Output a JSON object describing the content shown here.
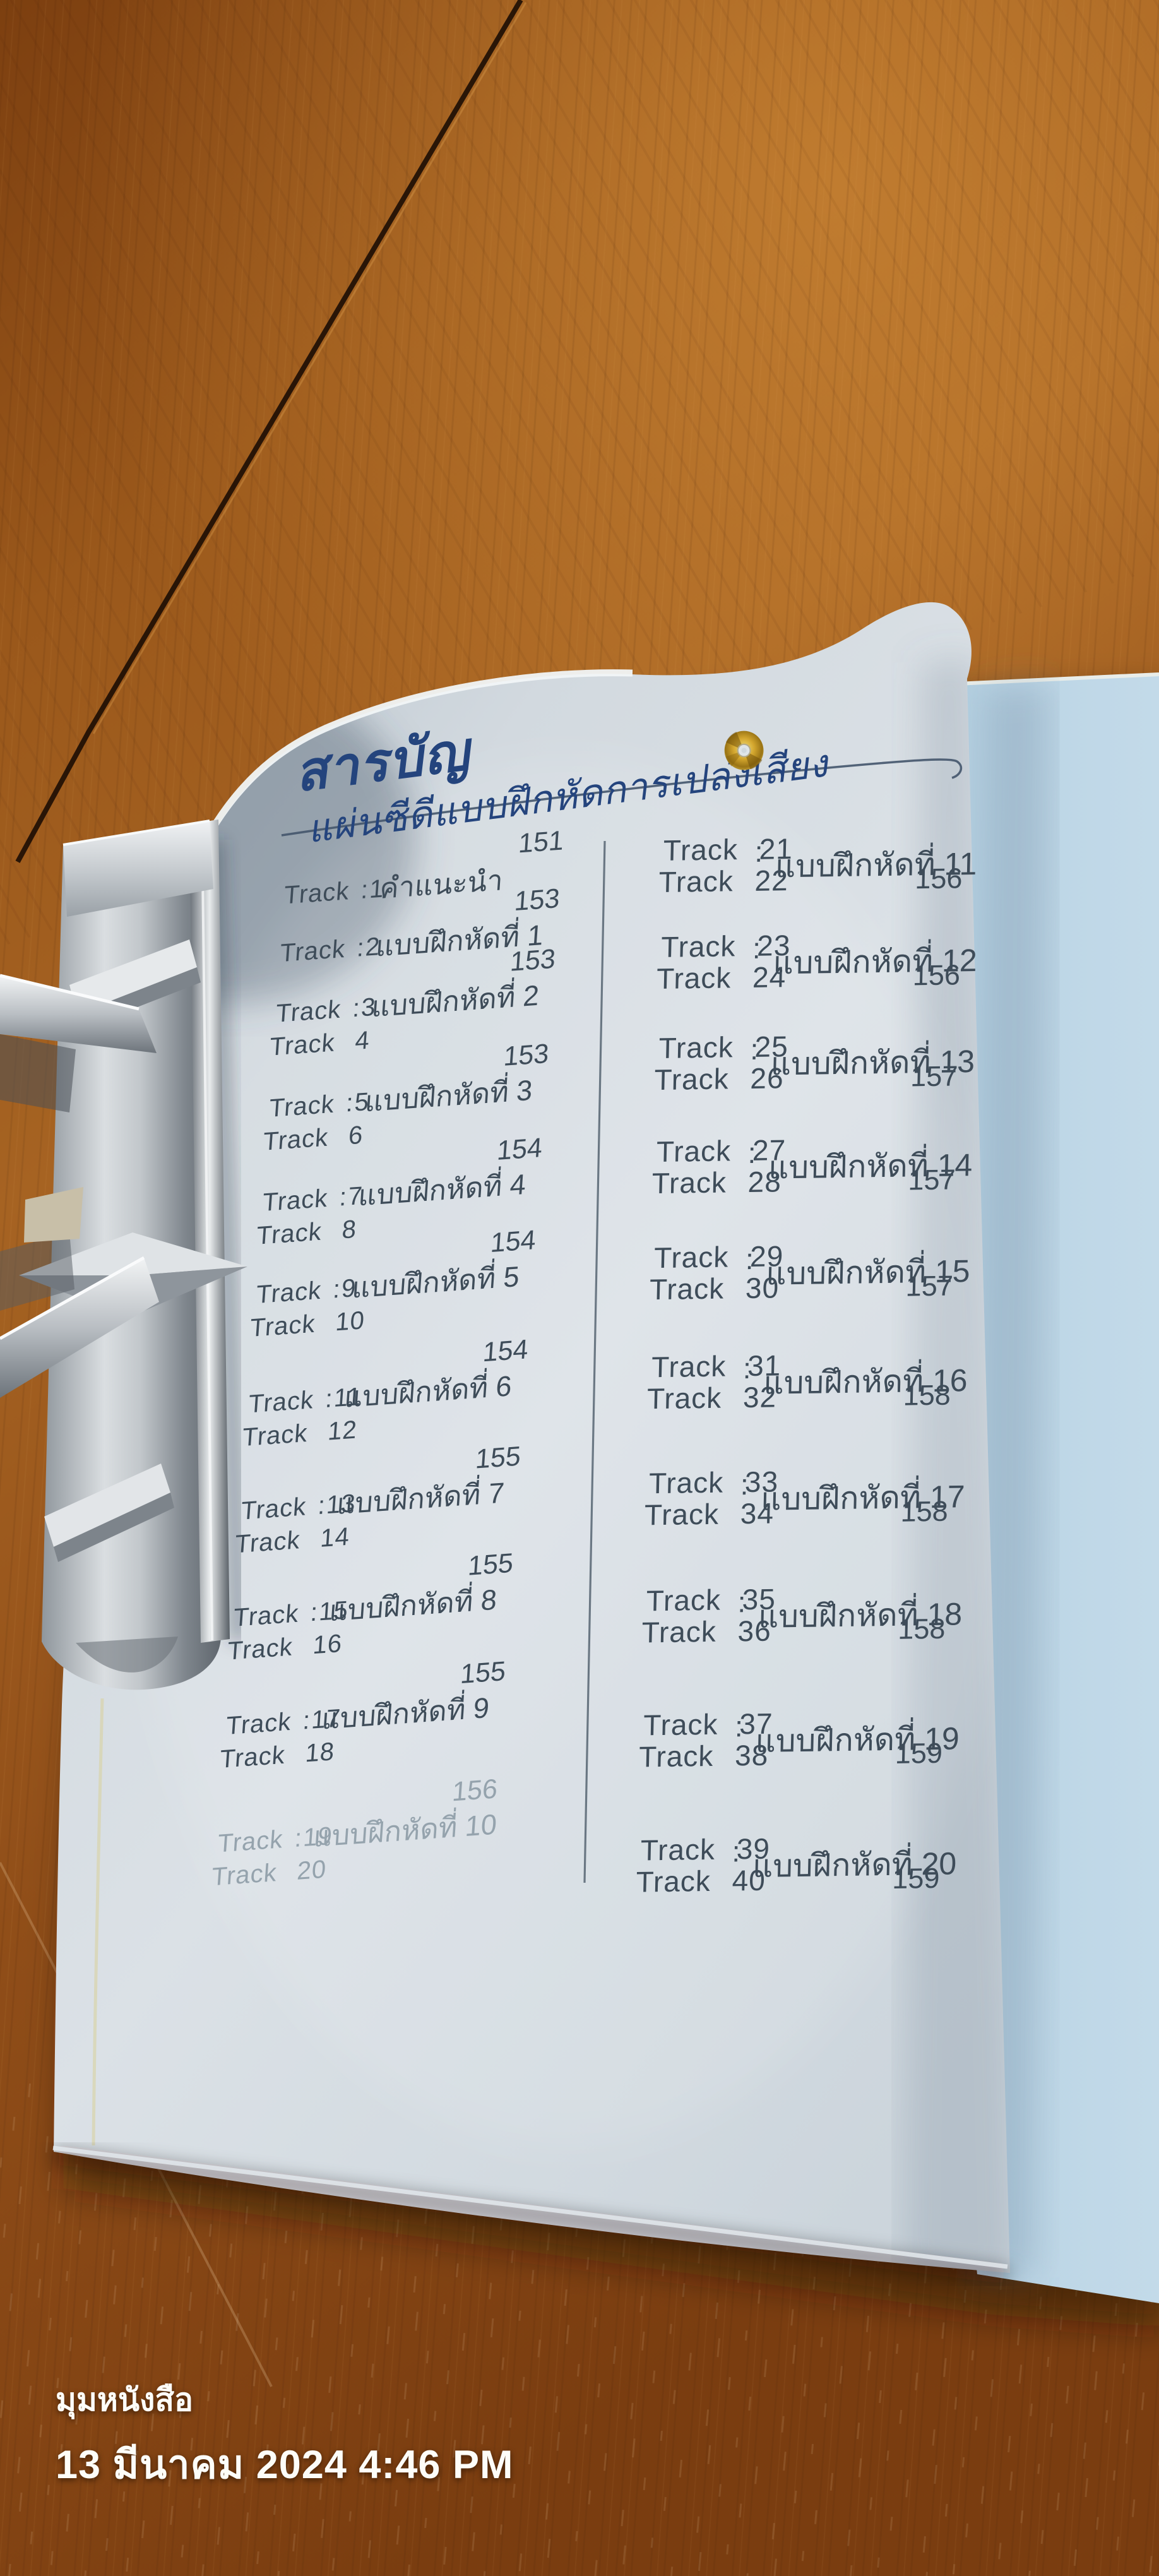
{
  "watermark": {
    "line1": "มุมหนังสือ",
    "line2": "13 มีนาคม 2024 4:46 PM"
  },
  "book_page": {
    "title": "สารบัญ",
    "subtitle": "แผ่นซีดีแบบฝึกหัดการเปล่งเสียง",
    "cd_icon": "cd-disc-icon",
    "columns": {
      "left": [
        {
          "tracks": [
            "Track 1"
          ],
          "label": "คำแนะนำ",
          "page": "151"
        },
        {
          "tracks": [
            "Track 2"
          ],
          "label": "แบบฝึกหัดที่ 1",
          "page": "153"
        },
        {
          "tracks": [
            "Track 3",
            "Track 4"
          ],
          "label": "แบบฝึกหัดที่ 2",
          "page": "153"
        },
        {
          "tracks": [
            "Track 5",
            "Track 6"
          ],
          "label": "แบบฝึกหัดที่ 3",
          "page": "153"
        },
        {
          "tracks": [
            "Track 7",
            "Track 8"
          ],
          "label": "แบบฝึกหัดที่ 4",
          "page": "154"
        },
        {
          "tracks": [
            "Track 9",
            "Track 10"
          ],
          "label": "แบบฝึกหัดที่ 5",
          "page": "154"
        },
        {
          "tracks": [
            "Track 11",
            "Track 12"
          ],
          "label": "แบบฝึกหัดที่ 6",
          "page": "154"
        },
        {
          "tracks": [
            "Track 13",
            "Track 14"
          ],
          "label": "แบบฝึกหัดที่ 7",
          "page": "155"
        },
        {
          "tracks": [
            "Track 15",
            "Track 16"
          ],
          "label": "แบบฝึกหัดที่ 8",
          "page": "155"
        },
        {
          "tracks": [
            "Track 17",
            "Track 18"
          ],
          "label": "แบบฝึกหัดที่ 9",
          "page": "155"
        },
        {
          "tracks": [
            "Track 19",
            "Track 20"
          ],
          "label": "แบบฝึกหัดที่ 10",
          "page": "156",
          "faded": true
        }
      ],
      "right": [
        {
          "tracks": [
            "Track 21",
            "Track 22"
          ],
          "label": "แบบฝึกหัดที่ 11",
          "page": "156"
        },
        {
          "tracks": [
            "Track 23",
            "Track 24"
          ],
          "label": "แบบฝึกหัดที่ 12",
          "page": "156"
        },
        {
          "tracks": [
            "Track 25",
            "Track 26"
          ],
          "label": "แบบฝึกหัดที่ 13",
          "page": "157"
        },
        {
          "tracks": [
            "Track 27",
            "Track 28"
          ],
          "label": "แบบฝึกหัดที่ 14",
          "page": "157"
        },
        {
          "tracks": [
            "Track 29",
            "Track 30"
          ],
          "label": "แบบฝึกหัดที่ 15",
          "page": "157"
        },
        {
          "tracks": [
            "Track 31",
            "Track 32"
          ],
          "label": "แบบฝึกหัดที่ 16",
          "page": "158"
        },
        {
          "tracks": [
            "Track 33",
            "Track 34"
          ],
          "label": "แบบฝึกหัดที่ 17",
          "page": "158"
        },
        {
          "tracks": [
            "Track 35",
            "Track 36"
          ],
          "label": "แบบฝึกหัดที่ 18",
          "page": "158"
        },
        {
          "tracks": [
            "Track 37",
            "Track 38"
          ],
          "label": "แบบฝึกหัดที่ 19",
          "page": "159"
        },
        {
          "tracks": [
            "Track 39",
            "Track 40"
          ],
          "label": "แบบฝึกหัดที่ 20",
          "page": "159"
        }
      ]
    }
  },
  "colors": {
    "title_navy": "#24447d",
    "body_text": "#3e4c59",
    "faded_text": "#95a3ad",
    "page_white": "#d6dde3",
    "page_blue": "#b6d1e1",
    "wood_brown": "#96571b",
    "cd_gold": "#d2a52d",
    "watermark_white": "#fdfdf8"
  }
}
